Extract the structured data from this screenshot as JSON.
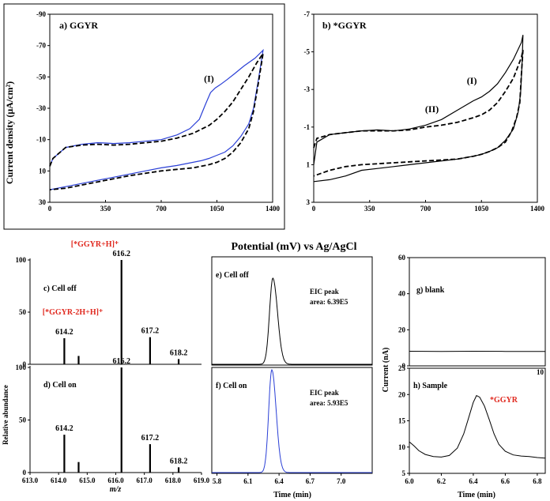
{
  "figure_title": "Potential (mV) vs Ag/AgCl",
  "colors": {
    "blue": "#2a3fd6",
    "red": "#e0281e",
    "black": "#000000"
  },
  "chart_data": [
    {
      "id": "cv_a",
      "type": "line",
      "title": "a) GGYR",
      "xlabel": "Potential (mV) vs Ag/AgCl",
      "ylabel": "Current density (μA/cm²)",
      "xlim": [
        0,
        1400
      ],
      "ylim": [
        30,
        -90
      ],
      "inverted_y": true,
      "xticks": [
        "0",
        "350",
        "700",
        "1050",
        "1400"
      ],
      "yticks": [
        "-90",
        "-70",
        "-50",
        "-30",
        "-10",
        "10",
        "30"
      ],
      "annotations": [
        {
          "text": "(I)",
          "x": 1000,
          "y": -47
        }
      ],
      "series": [
        {
          "name": "blue",
          "style": "solid",
          "x": [
            0,
            20,
            100,
            200,
            300,
            350,
            400,
            500,
            600,
            700,
            800,
            880,
            940,
            980,
            1010,
            1040,
            1070,
            1110,
            1160,
            1220,
            1290,
            1340,
            1310,
            1280,
            1250,
            1200,
            1150,
            1100,
            1050,
            1000,
            950,
            900,
            850,
            800,
            700,
            600,
            500,
            400,
            300,
            200,
            100,
            0
          ],
          "y": [
            7,
            2,
            -5,
            -7,
            -8,
            -7.8,
            -7.5,
            -8,
            -9,
            -10,
            -13,
            -17,
            -23,
            -33,
            -40,
            -43,
            -45,
            -48,
            -52,
            -57,
            -62,
            -67,
            -48,
            -30,
            -20,
            -12,
            -6,
            -2,
            0,
            2,
            3.5,
            4.5,
            5.5,
            6.5,
            8,
            10,
            12,
            14,
            16,
            18,
            20,
            22
          ]
        },
        {
          "name": "dashed",
          "style": "dashed",
          "x": [
            0,
            20,
            100,
            200,
            300,
            350,
            400,
            500,
            600,
            700,
            800,
            900,
            1000,
            1050,
            1100,
            1150,
            1200,
            1250,
            1300,
            1340,
            1310,
            1280,
            1250,
            1200,
            1150,
            1100,
            1050,
            1000,
            950,
            900,
            850,
            800,
            700,
            600,
            500,
            400,
            300,
            200,
            100,
            0
          ],
          "y": [
            7,
            2,
            -5,
            -6.5,
            -7,
            -6.8,
            -6.5,
            -7,
            -8,
            -9,
            -11,
            -14,
            -19,
            -23,
            -28,
            -34,
            -42,
            -50,
            -59,
            -65,
            -46,
            -28,
            -17,
            -8,
            -2,
            2,
            4.5,
            6,
            7,
            8,
            8.5,
            9,
            10,
            11.5,
            13,
            15,
            17,
            19,
            21,
            22
          ]
        }
      ]
    },
    {
      "id": "cv_b",
      "type": "line",
      "title": "b) *GGYR",
      "xlabel": "Potential (mV) vs Ag/AgCl",
      "ylabel": "Current density (μA/cm²)",
      "xlim": [
        0,
        1400
      ],
      "ylim": [
        3,
        -7
      ],
      "inverted_y": true,
      "xticks": [
        "0",
        "350",
        "700",
        "1050",
        "1400"
      ],
      "yticks": [
        "-7",
        "-5",
        "-3",
        "-1",
        "1",
        "3"
      ],
      "annotations": [
        {
          "text": "(I)",
          "x": 990,
          "y": -3.3
        },
        {
          "text": "(II)",
          "x": 740,
          "y": -1.8
        }
      ],
      "series": [
        {
          "name": "solid",
          "style": "solid",
          "x": [
            0,
            20,
            100,
            200,
            300,
            400,
            500,
            600,
            700,
            800,
            900,
            1000,
            1050,
            1100,
            1150,
            1200,
            1250,
            1300,
            1310,
            1305,
            1295,
            1280,
            1250,
            1200,
            1150,
            1100,
            1050,
            1000,
            900,
            800,
            700,
            600,
            500,
            400,
            300,
            200,
            100,
            0
          ],
          "y": [
            1.0,
            -0.2,
            -0.6,
            -0.7,
            -0.8,
            -0.85,
            -0.8,
            -0.9,
            -1.1,
            -1.4,
            -1.9,
            -2.4,
            -2.6,
            -2.9,
            -3.3,
            -3.9,
            -4.6,
            -5.5,
            -5.9,
            -4.5,
            -2.8,
            -1.8,
            -0.9,
            -0.3,
            0.1,
            0.3,
            0.45,
            0.55,
            0.7,
            0.8,
            0.9,
            1.0,
            1.1,
            1.2,
            1.3,
            1.6,
            1.8,
            1.9
          ]
        },
        {
          "name": "dashed",
          "style": "dashed",
          "x": [
            0,
            20,
            100,
            200,
            300,
            400,
            500,
            600,
            700,
            800,
            900,
            1000,
            1050,
            1100,
            1150,
            1200,
            1250,
            1300,
            1310,
            1300,
            1290,
            1270,
            1240,
            1200,
            1150,
            1100,
            1050,
            1000,
            900,
            800,
            700,
            600,
            500,
            400,
            300,
            200,
            100,
            0
          ],
          "y": [
            0.1,
            -0.4,
            -0.6,
            -0.7,
            -0.8,
            -0.8,
            -0.8,
            -0.85,
            -1.0,
            -1.1,
            -1.25,
            -1.5,
            -1.65,
            -1.9,
            -2.3,
            -2.9,
            -3.6,
            -4.7,
            -5.1,
            -3.8,
            -2.3,
            -1.5,
            -0.8,
            -0.2,
            0.1,
            0.3,
            0.45,
            0.55,
            0.7,
            0.75,
            0.8,
            0.85,
            0.9,
            0.95,
            1.0,
            1.1,
            1.3,
            1.6
          ]
        }
      ]
    },
    {
      "id": "ms_c",
      "type": "bar",
      "title": "c)  Cell off",
      "xlim": [
        613,
        619
      ],
      "ylim": [
        0,
        100
      ],
      "yticks": [
        "0",
        "50",
        "100"
      ],
      "peaks": [
        {
          "mz": 614.2,
          "value": 25
        },
        {
          "mz": 614.7,
          "value": 8
        },
        {
          "mz": 616.2,
          "value": 100
        },
        {
          "mz": 617.2,
          "value": 26
        },
        {
          "mz": 618.2,
          "value": 5
        }
      ],
      "peak_labels": [
        "614.2",
        "616.2",
        "617.2",
        "618.2"
      ],
      "annotations": [
        "[*GGYR+H]⁺",
        "[*GGYR-2H+H]⁺"
      ]
    },
    {
      "id": "ms_d",
      "type": "bar",
      "title": "d)  Cell on",
      "xlim": [
        613,
        619
      ],
      "ylim": [
        0,
        100
      ],
      "yticks": [
        "0",
        "50",
        "100"
      ],
      "xticks": [
        "613.0",
        "614.0",
        "615.0",
        "616.0",
        "617.0",
        "618.0",
        "619.0"
      ],
      "xlabel": "m/z",
      "ylabel": "Relative abundance",
      "peaks": [
        {
          "mz": 614.2,
          "value": 36
        },
        {
          "mz": 614.7,
          "value": 10
        },
        {
          "mz": 616.2,
          "value": 100
        },
        {
          "mz": 617.2,
          "value": 27
        },
        {
          "mz": 618.2,
          "value": 5
        }
      ],
      "peak_labels": [
        "614.2",
        "616.2",
        "617.2",
        "618.2"
      ]
    },
    {
      "id": "eic_e",
      "type": "line",
      "title": "e) Cell off",
      "annotation": [
        "EIC peak",
        "area: 6.39E5"
      ],
      "xlim": [
        5.75,
        7.3
      ],
      "peak_center": 6.34
    },
    {
      "id": "eic_f",
      "type": "line",
      "title": "f)   Cell on",
      "annotation": [
        "EIC peak",
        "area: 5.93E5"
      ],
      "xlim": [
        5.75,
        7.3
      ],
      "peak_center": 6.33,
      "xticks": [
        "5.8",
        "6.1",
        "6.4",
        "6.7",
        "7.0"
      ],
      "xlabel": "Time (min)"
    },
    {
      "id": "amp_g",
      "type": "line",
      "title": "g)  blank",
      "xlim": [
        6.0,
        6.85
      ],
      "ylim": [
        0,
        60
      ],
      "yticks": [
        "0",
        "20",
        "40",
        "60"
      ],
      "edge_label": "10",
      "series": [
        {
          "name": "blank",
          "x": [
            6.0,
            6.2,
            6.4,
            6.6,
            6.85
          ],
          "y": [
            8.1,
            8.0,
            8.1,
            8.0,
            8.0
          ]
        }
      ]
    },
    {
      "id": "amp_h",
      "type": "line",
      "title": "h) Sample",
      "annotation": "*GGYR",
      "xlim": [
        6.0,
        6.85
      ],
      "ylim": [
        5,
        25
      ],
      "yticks": [
        "5",
        "10",
        "15",
        "20",
        "25"
      ],
      "xticks": [
        "6.0",
        "6.2",
        "6.4",
        "6.6",
        "6.8"
      ],
      "xlabel": "Time (min)",
      "ylabel": "Current (nA)",
      "series": [
        {
          "name": "sample",
          "x": [
            6.0,
            6.03,
            6.06,
            6.1,
            6.15,
            6.2,
            6.25,
            6.3,
            6.34,
            6.37,
            6.4,
            6.42,
            6.44,
            6.47,
            6.5,
            6.53,
            6.56,
            6.6,
            6.65,
            6.7,
            6.75,
            6.8,
            6.85
          ],
          "y": [
            11,
            10.2,
            9.3,
            8.6,
            8.2,
            8.1,
            8.4,
            9.8,
            12.5,
            15.5,
            18.5,
            19.8,
            19.5,
            17.8,
            15.2,
            12.5,
            10.5,
            9.2,
            8.5,
            8.3,
            8.2,
            8.0,
            7.9
          ]
        }
      ]
    }
  ]
}
